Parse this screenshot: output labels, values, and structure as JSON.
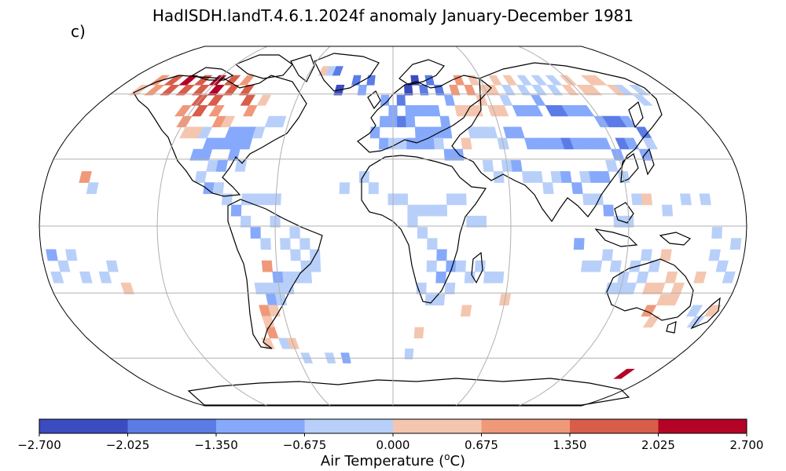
{
  "title": "HadISDH.landT.4.6.1.2024f anomaly January-December 1981",
  "panel_label": "c)",
  "colorbar": {
    "label_prefix": "Air Temperature (",
    "label_sup": "o",
    "label_suffix": "C)",
    "ticks": [
      "−2.700",
      "−2.025",
      "−1.350",
      "−0.675",
      "0.000",
      "0.675",
      "1.350",
      "2.025",
      "2.700"
    ],
    "colors": [
      "#3b4cc0",
      "#5b7ce6",
      "#86a9fc",
      "#b8d0f9",
      "#f4c6b0",
      "#f0997a",
      "#d85d4a",
      "#b40426"
    ]
  },
  "projection": "Robinson",
  "map_data": {
    "description": "Gridded land air temperature anomaly cells (5° boxes), color class index 0-7 (0 = −2.7 to −2.025 … 7 = 2.025 to 2.7)",
    "cells": [
      [
        -165,
        62,
        4
      ],
      [
        -160,
        67,
        5
      ],
      [
        -155,
        62,
        5
      ],
      [
        -150,
        67,
        6
      ],
      [
        -145,
        62,
        6
      ],
      [
        -140,
        67,
        7
      ],
      [
        -135,
        62,
        6
      ],
      [
        -130,
        67,
        6
      ],
      [
        -125,
        62,
        6
      ],
      [
        -120,
        67,
        7
      ],
      [
        -115,
        62,
        7
      ],
      [
        -110,
        67,
        6
      ],
      [
        -105,
        62,
        6
      ],
      [
        -100,
        67,
        5
      ],
      [
        -95,
        62,
        6
      ],
      [
        -90,
        57,
        6
      ],
      [
        -85,
        52,
        5
      ],
      [
        -80,
        57,
        4
      ],
      [
        -125,
        52,
        5
      ],
      [
        -120,
        57,
        6
      ],
      [
        -115,
        52,
        6
      ],
      [
        -110,
        57,
        6
      ],
      [
        -105,
        52,
        5
      ],
      [
        -100,
        47,
        5
      ],
      [
        -95,
        47,
        4
      ],
      [
        -120,
        47,
        5
      ],
      [
        -115,
        42,
        4
      ],
      [
        -110,
        42,
        4
      ],
      [
        -105,
        42,
        3
      ],
      [
        -100,
        37,
        2
      ],
      [
        -95,
        37,
        2
      ],
      [
        -90,
        37,
        2
      ],
      [
        -85,
        37,
        2
      ],
      [
        -80,
        37,
        2
      ],
      [
        -90,
        42,
        2
      ],
      [
        -85,
        42,
        2
      ],
      [
        -80,
        42,
        2
      ],
      [
        -75,
        42,
        3
      ],
      [
        -70,
        47,
        3
      ],
      [
        -65,
        47,
        3
      ],
      [
        -105,
        32,
        2
      ],
      [
        -100,
        32,
        2
      ],
      [
        -95,
        27,
        3
      ],
      [
        -90,
        27,
        2
      ],
      [
        -85,
        32,
        2
      ],
      [
        -80,
        27,
        3
      ],
      [
        -100,
        22,
        3
      ],
      [
        -95,
        17,
        2
      ],
      [
        -90,
        17,
        3
      ],
      [
        -85,
        12,
        3
      ],
      [
        -80,
        7,
        2
      ],
      [
        -75,
        12,
        3
      ],
      [
        -70,
        12,
        3
      ],
      [
        -65,
        12,
        3
      ],
      [
        -60,
        12,
        3
      ],
      [
        -160,
        22,
        5
      ],
      [
        -155,
        17,
        3
      ],
      [
        -75,
        2,
        3
      ],
      [
        -70,
        -3,
        2
      ],
      [
        -65,
        -8,
        3
      ],
      [
        -60,
        2,
        3
      ],
      [
        -55,
        -8,
        3
      ],
      [
        -50,
        -3,
        3
      ],
      [
        -45,
        -8,
        3
      ],
      [
        -40,
        -13,
        3
      ],
      [
        -50,
        -13,
        3
      ],
      [
        -45,
        -18,
        3
      ],
      [
        -55,
        -23,
        3
      ],
      [
        -50,
        -23,
        3
      ],
      [
        -45,
        -23,
        3
      ],
      [
        -40,
        -18,
        3
      ],
      [
        -60,
        -23,
        2
      ],
      [
        -65,
        -18,
        5
      ],
      [
        -70,
        -28,
        3
      ],
      [
        -65,
        -28,
        3
      ],
      [
        -60,
        -28,
        3
      ],
      [
        -55,
        -28,
        3
      ],
      [
        -65,
        -33,
        2
      ],
      [
        -60,
        -33,
        3
      ],
      [
        -70,
        -38,
        5
      ],
      [
        -65,
        -38,
        4
      ],
      [
        -70,
        -43,
        4
      ],
      [
        -70,
        -48,
        5
      ],
      [
        -65,
        -53,
        3
      ],
      [
        -60,
        -53,
        4
      ],
      [
        -175,
        -13,
        2
      ],
      [
        -170,
        -18,
        3
      ],
      [
        -165,
        -13,
        3
      ],
      [
        -160,
        -23,
        3
      ],
      [
        -150,
        -23,
        3
      ],
      [
        -145,
        -18,
        3
      ],
      [
        -140,
        -28,
        4
      ],
      [
        -175,
        -23,
        3
      ],
      [
        -35,
        62,
        0
      ],
      [
        -25,
        67,
        1
      ],
      [
        -20,
        62,
        2
      ],
      [
        -15,
        67,
        1
      ],
      [
        -5,
        57,
        2
      ],
      [
        0,
        52,
        2
      ],
      [
        5,
        57,
        1
      ],
      [
        10,
        62,
        0
      ],
      [
        15,
        67,
        0
      ],
      [
        20,
        62,
        1
      ],
      [
        25,
        67,
        1
      ],
      [
        30,
        62,
        1
      ],
      [
        35,
        57,
        2
      ],
      [
        10,
        52,
        2
      ],
      [
        15,
        52,
        2
      ],
      [
        20,
        52,
        2
      ],
      [
        25,
        52,
        2
      ],
      [
        30,
        47,
        2
      ],
      [
        -5,
        47,
        2
      ],
      [
        0,
        47,
        2
      ],
      [
        5,
        47,
        1
      ],
      [
        10,
        47,
        2
      ],
      [
        15,
        42,
        2
      ],
      [
        20,
        42,
        2
      ],
      [
        25,
        42,
        2
      ],
      [
        30,
        42,
        2
      ],
      [
        -10,
        42,
        2
      ],
      [
        -5,
        37,
        2
      ],
      [
        0,
        37,
        3
      ],
      [
        5,
        37,
        3
      ],
      [
        10,
        37,
        2
      ],
      [
        15,
        37,
        2
      ],
      [
        20,
        37,
        2
      ],
      [
        25,
        37,
        3
      ],
      [
        30,
        32,
        2
      ],
      [
        35,
        32,
        2
      ],
      [
        40,
        37,
        4
      ],
      [
        -50,
        72,
        4
      ],
      [
        -45,
        72,
        3
      ],
      [
        -40,
        72,
        1
      ],
      [
        40,
        62,
        5
      ],
      [
        45,
        67,
        5
      ],
      [
        50,
        62,
        5
      ],
      [
        55,
        67,
        4
      ],
      [
        60,
        62,
        4
      ],
      [
        65,
        62,
        4
      ],
      [
        70,
        67,
        4
      ],
      [
        75,
        62,
        3
      ],
      [
        80,
        67,
        4
      ],
      [
        85,
        62,
        3
      ],
      [
        90,
        67,
        3
      ],
      [
        95,
        62,
        3
      ],
      [
        100,
        67,
        3
      ],
      [
        105,
        62,
        3
      ],
      [
        110,
        67,
        3
      ],
      [
        115,
        62,
        4
      ],
      [
        120,
        67,
        4
      ],
      [
        125,
        62,
        4
      ],
      [
        130,
        62,
        4
      ],
      [
        135,
        67,
        4
      ],
      [
        140,
        67,
        4
      ],
      [
        145,
        62,
        4
      ],
      [
        150,
        62,
        3
      ],
      [
        155,
        57,
        3
      ],
      [
        160,
        62,
        3
      ],
      [
        40,
        52,
        4
      ],
      [
        45,
        52,
        4
      ],
      [
        50,
        52,
        4
      ],
      [
        55,
        57,
        4
      ],
      [
        60,
        52,
        4
      ],
      [
        65,
        52,
        4
      ],
      [
        70,
        57,
        3
      ],
      [
        75,
        52,
        2
      ],
      [
        80,
        52,
        2
      ],
      [
        85,
        52,
        2
      ],
      [
        90,
        57,
        2
      ],
      [
        95,
        52,
        1
      ],
      [
        100,
        52,
        1
      ],
      [
        105,
        52,
        2
      ],
      [
        110,
        52,
        2
      ],
      [
        115,
        52,
        2
      ],
      [
        120,
        47,
        2
      ],
      [
        125,
        47,
        1
      ],
      [
        130,
        47,
        1
      ],
      [
        135,
        47,
        2
      ],
      [
        140,
        42,
        1
      ],
      [
        45,
        42,
        3
      ],
      [
        50,
        42,
        3
      ],
      [
        55,
        42,
        3
      ],
      [
        60,
        37,
        3
      ],
      [
        65,
        42,
        2
      ],
      [
        70,
        42,
        2
      ],
      [
        75,
        37,
        2
      ],
      [
        80,
        37,
        2
      ],
      [
        85,
        37,
        2
      ],
      [
        90,
        37,
        2
      ],
      [
        95,
        37,
        1
      ],
      [
        100,
        37,
        2
      ],
      [
        105,
        37,
        2
      ],
      [
        110,
        37,
        2
      ],
      [
        115,
        37,
        2
      ],
      [
        120,
        32,
        2
      ],
      [
        125,
        37,
        1
      ],
      [
        130,
        37,
        2
      ],
      [
        135,
        32,
        2
      ],
      [
        140,
        37,
        3
      ],
      [
        50,
        27,
        3
      ],
      [
        55,
        22,
        3
      ],
      [
        60,
        27,
        3
      ],
      [
        65,
        27,
        2
      ],
      [
        70,
        22,
        3
      ],
      [
        75,
        22,
        3
      ],
      [
        80,
        17,
        3
      ],
      [
        85,
        22,
        3
      ],
      [
        90,
        22,
        2
      ],
      [
        95,
        17,
        2
      ],
      [
        100,
        22,
        3
      ],
      [
        105,
        22,
        2
      ],
      [
        110,
        22,
        2
      ],
      [
        115,
        27,
        3
      ],
      [
        120,
        22,
        3
      ],
      [
        125,
        12,
        3
      ],
      [
        130,
        12,
        4
      ],
      [
        100,
        12,
        3
      ],
      [
        105,
        12,
        3
      ],
      [
        110,
        7,
        2
      ],
      [
        115,
        2,
        3
      ],
      [
        120,
        2,
        3
      ],
      [
        140,
        7,
        3
      ],
      [
        150,
        12,
        3
      ],
      [
        160,
        12,
        3
      ],
      [
        -10,
        17,
        3
      ],
      [
        0,
        12,
        3
      ],
      [
        5,
        12,
        3
      ],
      [
        10,
        7,
        3
      ],
      [
        15,
        7,
        3
      ],
      [
        20,
        7,
        3
      ],
      [
        25,
        7,
        3
      ],
      [
        30,
        12,
        3
      ],
      [
        35,
        12,
        3
      ],
      [
        40,
        2,
        3
      ],
      [
        45,
        2,
        3
      ],
      [
        10,
        2,
        3
      ],
      [
        15,
        -3,
        3
      ],
      [
        20,
        -8,
        3
      ],
      [
        25,
        -13,
        2
      ],
      [
        30,
        -18,
        2
      ],
      [
        35,
        -18,
        3
      ],
      [
        40,
        -23,
        3
      ],
      [
        45,
        -18,
        3
      ],
      [
        50,
        -23,
        3
      ],
      [
        20,
        -18,
        3
      ],
      [
        25,
        -23,
        2
      ],
      [
        30,
        -28,
        3
      ],
      [
        15,
        -28,
        3
      ],
      [
        20,
        -33,
        3
      ],
      [
        25,
        -33,
        3
      ],
      [
        55,
        -23,
        3
      ],
      [
        -25,
        17,
        3
      ],
      [
        -15,
        22,
        3
      ],
      [
        40,
        -38,
        4
      ],
      [
        60,
        -33,
        4
      ],
      [
        15,
        -48,
        4
      ],
      [
        10,
        -58,
        3
      ],
      [
        -75,
        -53,
        4
      ],
      [
        -40,
        -60,
        3
      ],
      [
        -30,
        -60,
        2
      ],
      [
        -55,
        -60,
        3
      ],
      [
        160,
        -68,
        7
      ],
      [
        95,
        -8,
        2
      ],
      [
        100,
        -18,
        3
      ],
      [
        105,
        -18,
        3
      ],
      [
        110,
        -13,
        3
      ],
      [
        115,
        -18,
        3
      ],
      [
        120,
        -23,
        3
      ],
      [
        125,
        -18,
        3
      ],
      [
        130,
        -13,
        3
      ],
      [
        135,
        -18,
        3
      ],
      [
        140,
        -13,
        4
      ],
      [
        145,
        -23,
        4
      ],
      [
        150,
        -28,
        4
      ],
      [
        140,
        -28,
        4
      ],
      [
        135,
        -28,
        4
      ],
      [
        130,
        -23,
        3
      ],
      [
        125,
        -28,
        3
      ],
      [
        120,
        -28,
        3
      ],
      [
        115,
        -28,
        3
      ],
      [
        145,
        -33,
        4
      ],
      [
        150,
        -33,
        4
      ],
      [
        140,
        -38,
        5
      ],
      [
        145,
        -43,
        4
      ],
      [
        160,
        -23,
        4
      ],
      [
        165,
        -13,
        3
      ],
      [
        170,
        -18,
        3
      ],
      [
        175,
        -8,
        3
      ],
      [
        165,
        -38,
        3
      ],
      [
        170,
        -43,
        3
      ],
      [
        175,
        -38,
        4
      ],
      [
        165,
        -3,
        3
      ],
      [
        175,
        -23,
        3
      ]
    ]
  }
}
